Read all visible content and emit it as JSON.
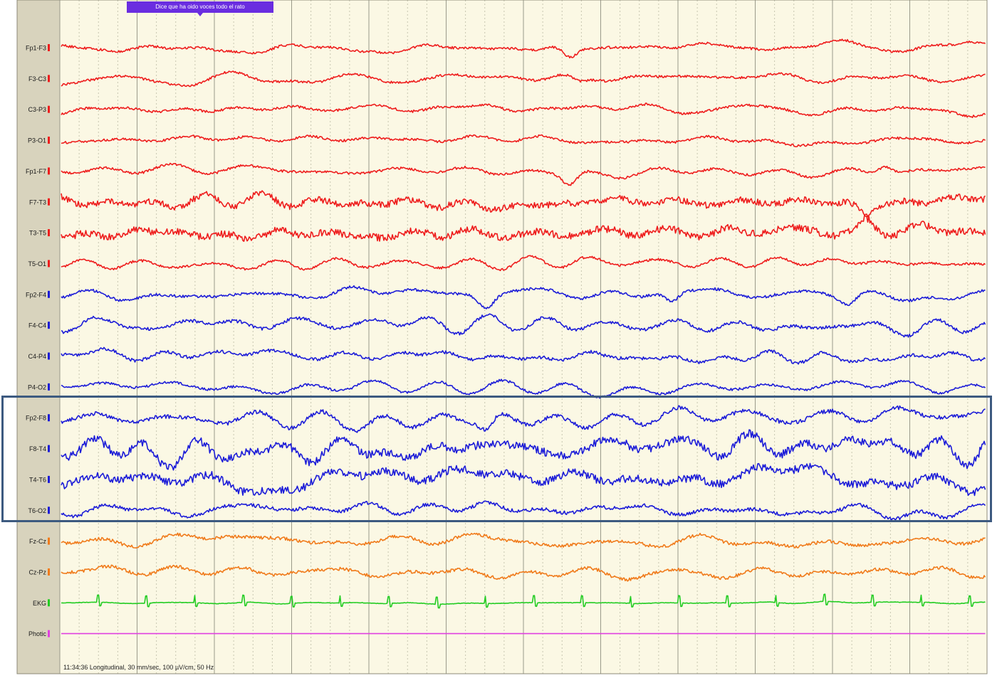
{
  "annotation": {
    "text": "Dice que ha oido voces todo el rato"
  },
  "status": {
    "text": "11:34:36 Longitudinal, 30 mm/sec, 100 µV/cm, 50 Hz"
  },
  "colors": {
    "background": "#fbf8e4",
    "left_panel": "#d8d3bd",
    "major_grid": "#9a9a8a",
    "minor_grid": "#c8c6b0",
    "left_chain": "#ee1c1c",
    "right_chain": "#1c1cd8",
    "midline": "#f07a1a",
    "ekg": "#22cc22",
    "photic": "#e040e0",
    "annotation": "#6a2de0",
    "highlight": "#3d5a80"
  },
  "chart_data": {
    "type": "line",
    "title": "",
    "time_axis": {
      "major_divisions": 12,
      "minor_per_major": 4
    },
    "highlight": {
      "channels": [
        "Fp2-F8",
        "F8-T4",
        "T4-T6",
        "T6-O2"
      ]
    },
    "channels": [
      {
        "label": "Fp1-F3",
        "group": "left_chain",
        "amplitude": 6,
        "hf": 0.35,
        "events": [
          {
            "at": 0.55,
            "depth": 16
          }
        ]
      },
      {
        "label": "F3-C3",
        "group": "left_chain",
        "amplitude": 6,
        "hf": 0.35,
        "events": [
          {
            "at": 0.56,
            "depth": 8
          }
        ]
      },
      {
        "label": "C3-P3",
        "group": "left_chain",
        "amplitude": 6,
        "hf": 0.35,
        "events": []
      },
      {
        "label": "P3-O1",
        "group": "left_chain",
        "amplitude": 6,
        "hf": 0.35,
        "events": []
      },
      {
        "label": "Fp1-F7",
        "group": "left_chain",
        "amplitude": 6,
        "hf": 0.35,
        "events": [
          {
            "at": 0.55,
            "depth": 16
          },
          {
            "at": 0.89,
            "depth": -12
          }
        ]
      },
      {
        "label": "F7-T3",
        "group": "left_chain",
        "amplitude": 7,
        "hf": 0.8,
        "events": [
          {
            "at": 0.87,
            "depth": 14
          }
        ]
      },
      {
        "label": "T3-T5",
        "group": "left_chain",
        "amplitude": 7,
        "hf": 0.9,
        "events": [
          {
            "at": 0.87,
            "depth": -14
          }
        ]
      },
      {
        "label": "T5-O1",
        "group": "left_chain",
        "amplitude": 6,
        "hf": 0.35,
        "events": []
      },
      {
        "label": "Fp2-F4",
        "group": "right_chain",
        "amplitude": 8,
        "hf": 0.3,
        "events": [
          {
            "at": 0.46,
            "depth": 18
          },
          {
            "at": 0.66,
            "depth": 16
          },
          {
            "at": 0.85,
            "depth": 12
          }
        ]
      },
      {
        "label": "F4-C4",
        "group": "right_chain",
        "amplitude": 8,
        "hf": 0.35,
        "events": []
      },
      {
        "label": "C4-P4",
        "group": "right_chain",
        "amplitude": 8,
        "hf": 0.35,
        "events": []
      },
      {
        "label": "P4-O2",
        "group": "right_chain",
        "amplitude": 7,
        "hf": 0.3,
        "events": []
      },
      {
        "label": "Fp2-F8",
        "group": "right_chain",
        "amplitude": 12,
        "hf": 0.3,
        "events": [
          {
            "at": 0.46,
            "depth": 18
          }
        ]
      },
      {
        "label": "F8-T4",
        "group": "right_chain",
        "amplitude": 14,
        "hf": 0.5,
        "events": []
      },
      {
        "label": "T4-T6",
        "group": "right_chain",
        "amplitude": 14,
        "hf": 0.5,
        "events": []
      },
      {
        "label": "T6-O2",
        "group": "right_chain",
        "amplitude": 9,
        "hf": 0.35,
        "events": []
      },
      {
        "label": "Fz-Cz",
        "group": "midline",
        "amplitude": 7,
        "hf": 0.4,
        "events": []
      },
      {
        "label": "Cz-Pz",
        "group": "midline",
        "amplitude": 7,
        "hf": 0.4,
        "events": []
      },
      {
        "label": "EKG",
        "group": "ekg",
        "amplitude": 1.5,
        "hf": 0.3,
        "ekg_beats": true,
        "events": []
      },
      {
        "label": "Photic",
        "group": "photic",
        "amplitude": 0,
        "hf": 0,
        "events": []
      }
    ]
  }
}
